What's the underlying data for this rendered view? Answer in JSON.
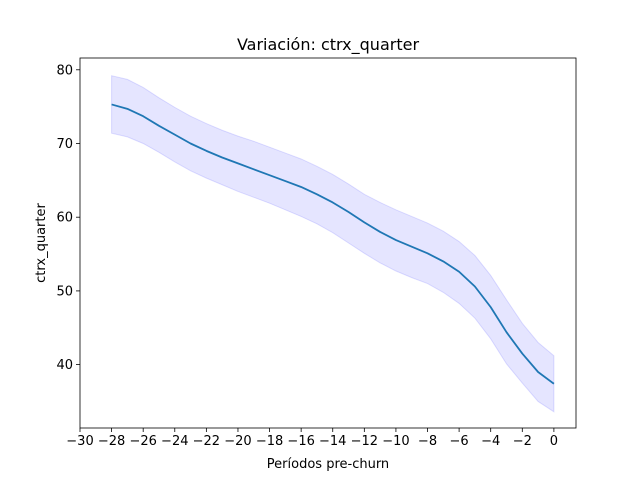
{
  "chart_data": {
    "type": "line",
    "title": "Variación: ctrx_quarter",
    "xlabel": "Períodos pre-churn",
    "ylabel": "ctrx_quarter",
    "xlim": [
      -30,
      1.4
    ],
    "ylim": [
      31.4,
      81.6
    ],
    "x_ticks": [
      -30,
      -28,
      -26,
      -24,
      -22,
      -20,
      -18,
      -16,
      -14,
      -12,
      -10,
      -8,
      -6,
      -4,
      -2,
      0
    ],
    "x_tick_labels": [
      "−30",
      "−28",
      "−26",
      "−24",
      "−22",
      "−20",
      "−18",
      "−16",
      "−14",
      "−12",
      "−10",
      "−8",
      "−6",
      "−4",
      "−2",
      "0"
    ],
    "y_ticks": [
      40,
      50,
      60,
      70,
      80
    ],
    "y_tick_labels": [
      "40",
      "50",
      "60",
      "70",
      "80"
    ],
    "grid": false,
    "line_color": "#1f77b4",
    "band_color": "#0000ff",
    "series": [
      {
        "x": [
          -28,
          -27,
          -26,
          -25,
          -24,
          -23,
          -22,
          -21,
          -20,
          -19,
          -18,
          -17,
          -16,
          -15,
          -14,
          -13,
          -12,
          -11,
          -10,
          -9,
          -8,
          -7,
          -6,
          -5,
          -4,
          -3,
          -2,
          -1,
          0
        ],
        "values": [
          75.3,
          74.7,
          73.7,
          72.4,
          71.2,
          70.0,
          69.0,
          68.1,
          67.3,
          66.5,
          65.7,
          64.9,
          64.1,
          63.1,
          62.0,
          60.7,
          59.3,
          58.0,
          56.9,
          56.0,
          55.1,
          54.0,
          52.6,
          50.6,
          47.8,
          44.4,
          41.5,
          39.0,
          37.4
        ],
        "ci_lower": [
          71.4,
          70.9,
          70.0,
          68.8,
          67.5,
          66.3,
          65.3,
          64.4,
          63.5,
          62.7,
          61.9,
          61.0,
          60.1,
          59.1,
          57.9,
          56.5,
          55.1,
          53.8,
          52.7,
          51.8,
          51.0,
          49.8,
          48.3,
          46.3,
          43.5,
          40.1,
          37.5,
          35.0,
          33.6
        ],
        "ci_upper": [
          79.2,
          78.7,
          77.6,
          76.2,
          74.9,
          73.7,
          72.7,
          71.8,
          71.0,
          70.3,
          69.5,
          68.7,
          67.9,
          66.9,
          65.8,
          64.5,
          63.1,
          62.0,
          61.0,
          60.1,
          59.2,
          58.1,
          56.7,
          54.8,
          52.1,
          48.8,
          45.6,
          43.0,
          41.2
        ]
      }
    ]
  }
}
